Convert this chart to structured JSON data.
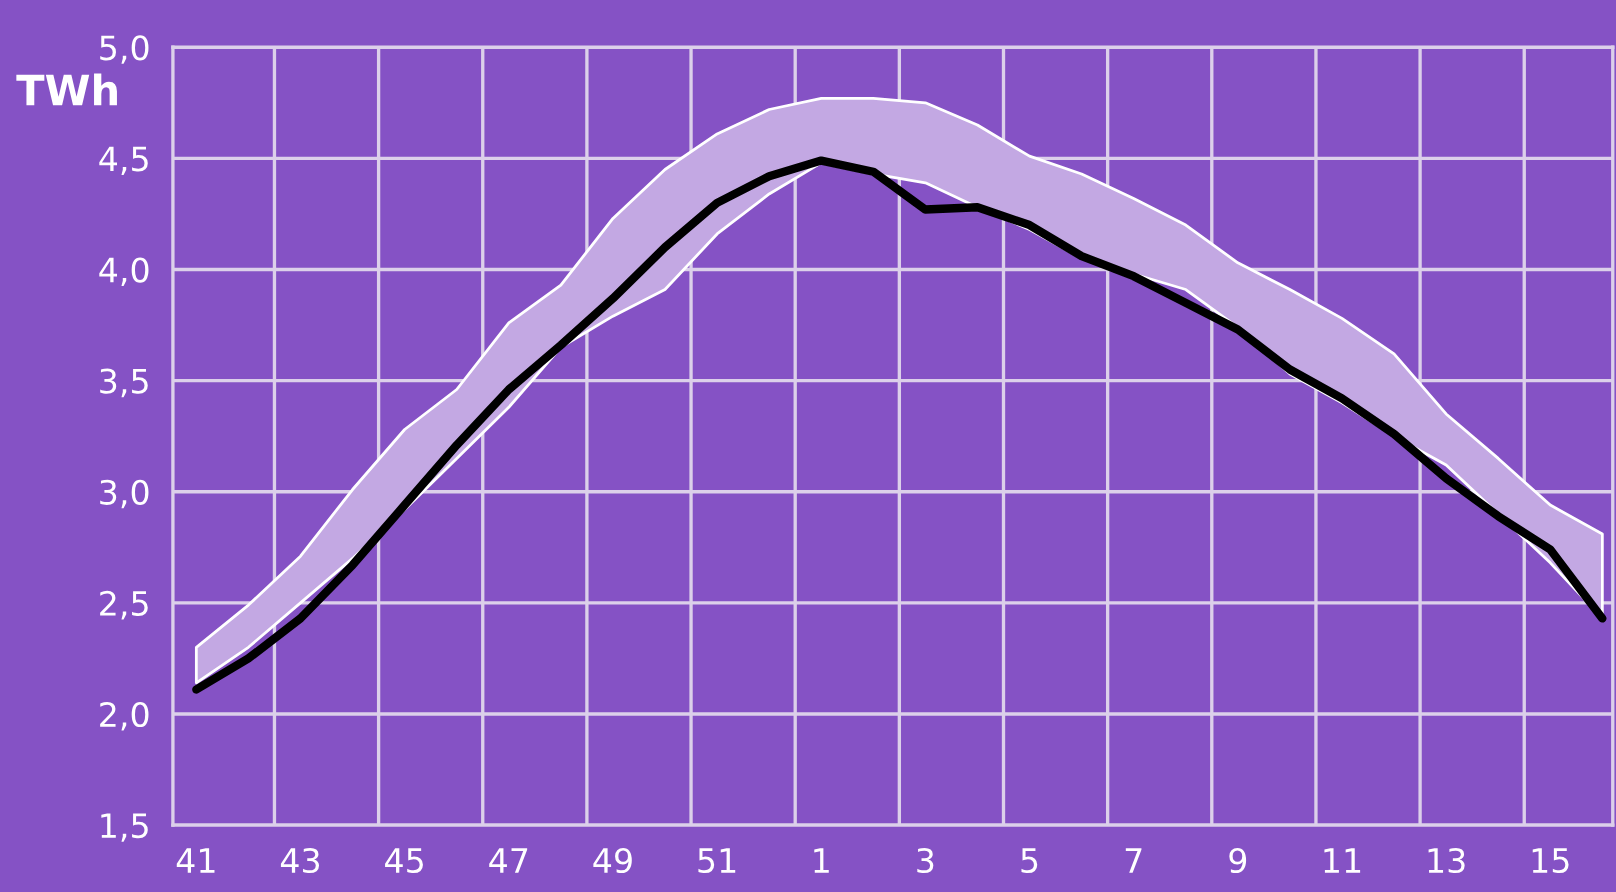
{
  "chart_data": {
    "type": "line",
    "ylabel": "TWh",
    "categories": [
      "41",
      null,
      "43",
      null,
      "45",
      null,
      "47",
      null,
      "49",
      null,
      "51",
      null,
      "1",
      null,
      "3",
      null,
      "5",
      null,
      "7",
      null,
      "9",
      null,
      "11",
      null,
      "13",
      null,
      "15",
      null
    ],
    "series": [
      {
        "color": "#000000",
        "values": [
          2.11,
          2.25,
          2.43,
          2.67,
          2.94,
          3.21,
          3.46,
          3.66,
          3.87,
          4.1,
          4.3,
          4.42,
          4.49,
          4.44,
          4.27,
          4.28,
          4.2,
          4.06,
          3.97,
          3.85,
          3.73,
          3.55,
          3.42,
          3.26,
          3.06,
          2.89,
          2.74,
          2.43
        ],
        "lower": [
          2.14,
          2.3,
          2.5,
          2.7,
          2.92,
          3.15,
          3.38,
          3.65,
          3.79,
          3.91,
          4.16,
          4.34,
          4.48,
          4.43,
          4.39,
          4.28,
          4.18,
          4.05,
          3.98,
          3.91,
          3.74,
          3.53,
          3.4,
          3.25,
          3.12,
          2.9,
          2.68,
          2.43
        ],
        "upper": [
          2.3,
          2.49,
          2.71,
          3.01,
          3.28,
          3.46,
          3.76,
          3.93,
          4.23,
          4.45,
          4.61,
          4.72,
          4.77,
          4.77,
          4.75,
          4.65,
          4.51,
          4.43,
          4.32,
          4.2,
          4.03,
          3.91,
          3.78,
          3.62,
          3.35,
          3.15,
          2.94,
          2.81
        ]
      }
    ],
    "ylim": [
      1.5,
      5.0
    ],
    "yticks": [
      {
        "value": 1.5,
        "label": "1,5"
      },
      {
        "value": 2.0,
        "label": "2,0"
      },
      {
        "value": 2.5,
        "label": "2,5"
      },
      {
        "value": 3.0,
        "label": "3,0"
      },
      {
        "value": 3.5,
        "label": "3,5"
      },
      {
        "value": 4.0,
        "label": "4,0"
      },
      {
        "value": 4.5,
        "label": "4,5"
      },
      {
        "value": 5.0,
        "label": "5,0"
      }
    ],
    "grid": true,
    "marker": "none",
    "line_style": "solid"
  }
}
